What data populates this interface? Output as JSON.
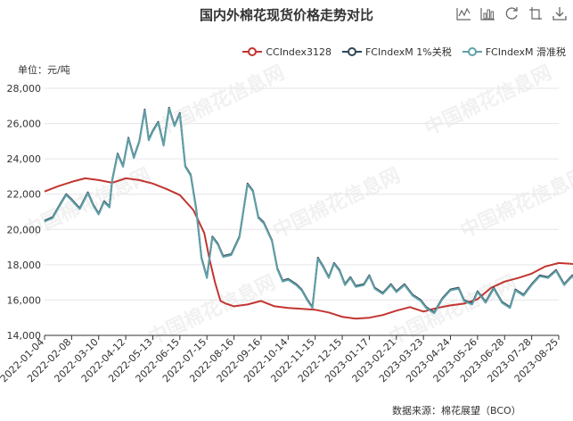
{
  "title": "国内外棉花现货价格走势对比",
  "unit_label": "单位：元/吨",
  "source_label": "数据来源：棉花展望（BCO）",
  "watermark": "中国棉花信息网",
  "toolbox": {
    "icons": [
      "line-chart-icon",
      "bar-chart-icon",
      "refresh-icon",
      "restore-icon",
      "download-icon"
    ]
  },
  "chart_data": {
    "type": "line",
    "title": "国内外棉花现货价格走势对比",
    "ylabel": "单位：元/吨",
    "ylim": [
      14000,
      28000
    ],
    "y_ticks": [
      14000,
      16000,
      18000,
      20000,
      22000,
      24000,
      26000,
      28000
    ],
    "y_tick_labels": [
      "14,000",
      "16,000",
      "18,000",
      "20,000",
      "22,000",
      "24,000",
      "26,000",
      "28,000"
    ],
    "x_tick_labels": [
      "2022-01-04",
      "2022-02-08",
      "2022-03-10",
      "2022-04-12",
      "2022-05-13",
      "2022-06-15",
      "2022-07-15",
      "2022-08-16",
      "2022-09-16",
      "2022-10-14",
      "2022-11-15",
      "2022-12-15",
      "2023-01-17",
      "2023-02-21",
      "2023-03-23",
      "2023-04-24",
      "2023-05-26",
      "2023-06-28",
      "2023-07-28",
      "2023-08-25"
    ],
    "legend_position": "top-right",
    "grid": true,
    "series": [
      {
        "name": "CCIndex3128",
        "color": "#c23531",
        "points": [
          [
            0,
            22150
          ],
          [
            0.5,
            22450
          ],
          [
            1,
            22700
          ],
          [
            1.5,
            22900
          ],
          [
            2,
            22800
          ],
          [
            2.5,
            22650
          ],
          [
            3,
            22900
          ],
          [
            3.5,
            22800
          ],
          [
            4,
            22600
          ],
          [
            4.5,
            22300
          ],
          [
            5,
            21950
          ],
          [
            5.5,
            21100
          ],
          [
            5.9,
            19800
          ],
          [
            6.1,
            18300
          ],
          [
            6.3,
            17000
          ],
          [
            6.5,
            15950
          ],
          [
            6.7,
            15800
          ],
          [
            7,
            15650
          ],
          [
            7.5,
            15750
          ],
          [
            8,
            15950
          ],
          [
            8.5,
            15650
          ],
          [
            9,
            15550
          ],
          [
            9.5,
            15500
          ],
          [
            10,
            15450
          ],
          [
            10.5,
            15300
          ],
          [
            11,
            15050
          ],
          [
            11.5,
            14950
          ],
          [
            12,
            15000
          ],
          [
            12.5,
            15150
          ],
          [
            13,
            15400
          ],
          [
            13.5,
            15600
          ],
          [
            14,
            15350
          ],
          [
            14.5,
            15550
          ],
          [
            15,
            15700
          ],
          [
            15.5,
            15800
          ],
          [
            16,
            16050
          ],
          [
            16.5,
            16700
          ],
          [
            17,
            17050
          ],
          [
            17.5,
            17250
          ],
          [
            18,
            17500
          ],
          [
            18.5,
            17900
          ],
          [
            19,
            18100
          ],
          [
            19.5,
            18050
          ],
          [
            20,
            18000
          ]
        ]
      },
      {
        "name": "FCIndexM 1%关税",
        "color": "#2f4554",
        "points": [
          [
            0,
            20500
          ],
          [
            0.3,
            20700
          ],
          [
            0.6,
            21500
          ],
          [
            0.8,
            22000
          ],
          [
            1,
            21700
          ],
          [
            1.3,
            21200
          ],
          [
            1.6,
            22100
          ],
          [
            1.8,
            21400
          ],
          [
            2,
            20900
          ],
          [
            2.2,
            21600
          ],
          [
            2.4,
            21300
          ],
          [
            2.5,
            22800
          ],
          [
            2.7,
            24300
          ],
          [
            2.9,
            23600
          ],
          [
            3.1,
            25200
          ],
          [
            3.3,
            24100
          ],
          [
            3.5,
            25000
          ],
          [
            3.7,
            26800
          ],
          [
            3.85,
            25100
          ],
          [
            4,
            25600
          ],
          [
            4.2,
            26100
          ],
          [
            4.4,
            24800
          ],
          [
            4.6,
            26900
          ],
          [
            4.8,
            25900
          ],
          [
            5,
            26600
          ],
          [
            5.2,
            23600
          ],
          [
            5.4,
            23100
          ],
          [
            5.6,
            21200
          ],
          [
            5.8,
            18400
          ],
          [
            6,
            17300
          ],
          [
            6.2,
            19600
          ],
          [
            6.4,
            19200
          ],
          [
            6.6,
            18500
          ],
          [
            6.9,
            18600
          ],
          [
            7.2,
            19600
          ],
          [
            7.5,
            22600
          ],
          [
            7.7,
            22200
          ],
          [
            7.9,
            20700
          ],
          [
            8.1,
            20400
          ],
          [
            8.4,
            19400
          ],
          [
            8.6,
            17800
          ],
          [
            8.8,
            17100
          ],
          [
            9,
            17200
          ],
          [
            9.3,
            16900
          ],
          [
            9.5,
            16600
          ],
          [
            9.7,
            16050
          ],
          [
            9.9,
            15600
          ],
          [
            10.1,
            18400
          ],
          [
            10.3,
            17900
          ],
          [
            10.5,
            17300
          ],
          [
            10.7,
            18100
          ],
          [
            10.9,
            17700
          ],
          [
            11.1,
            16900
          ],
          [
            11.3,
            17300
          ],
          [
            11.5,
            16800
          ],
          [
            11.8,
            16900
          ],
          [
            12,
            17400
          ],
          [
            12.2,
            16700
          ],
          [
            12.5,
            16400
          ],
          [
            12.8,
            16900
          ],
          [
            13,
            16500
          ],
          [
            13.3,
            16900
          ],
          [
            13.6,
            16300
          ],
          [
            13.9,
            16000
          ],
          [
            14.1,
            15600
          ],
          [
            14.4,
            15300
          ],
          [
            14.7,
            16100
          ],
          [
            15,
            16600
          ],
          [
            15.3,
            16700
          ],
          [
            15.5,
            16000
          ],
          [
            15.8,
            15800
          ],
          [
            16,
            16500
          ],
          [
            16.3,
            15900
          ],
          [
            16.6,
            16700
          ],
          [
            16.9,
            15900
          ],
          [
            17.2,
            15600
          ],
          [
            17.4,
            16600
          ],
          [
            17.7,
            16300
          ],
          [
            18,
            16900
          ],
          [
            18.3,
            17400
          ],
          [
            18.6,
            17300
          ],
          [
            18.9,
            17700
          ],
          [
            19.2,
            16900
          ],
          [
            19.5,
            17400
          ],
          [
            19.8,
            16800
          ],
          [
            20,
            17100
          ]
        ]
      },
      {
        "name": "FCIndexM 滑准税",
        "color": "#61a0a8",
        "points": [
          [
            0,
            20450
          ],
          [
            0.3,
            20650
          ],
          [
            0.6,
            21450
          ],
          [
            0.8,
            21950
          ],
          [
            1,
            21650
          ],
          [
            1.3,
            21150
          ],
          [
            1.6,
            22050
          ],
          [
            1.8,
            21350
          ],
          [
            2,
            20850
          ],
          [
            2.2,
            21550
          ],
          [
            2.4,
            21250
          ],
          [
            2.5,
            22750
          ],
          [
            2.7,
            24250
          ],
          [
            2.9,
            23550
          ],
          [
            3.1,
            25150
          ],
          [
            3.3,
            24050
          ],
          [
            3.5,
            24950
          ],
          [
            3.7,
            26750
          ],
          [
            3.85,
            25050
          ],
          [
            4,
            25550
          ],
          [
            4.2,
            26050
          ],
          [
            4.4,
            24750
          ],
          [
            4.6,
            26850
          ],
          [
            4.8,
            25850
          ],
          [
            5,
            26550
          ],
          [
            5.2,
            23550
          ],
          [
            5.4,
            23050
          ],
          [
            5.6,
            21150
          ],
          [
            5.8,
            18350
          ],
          [
            6,
            17250
          ],
          [
            6.2,
            19550
          ],
          [
            6.4,
            19150
          ],
          [
            6.6,
            18450
          ],
          [
            6.9,
            18550
          ],
          [
            7.2,
            19550
          ],
          [
            7.5,
            22550
          ],
          [
            7.7,
            22150
          ],
          [
            7.9,
            20650
          ],
          [
            8.1,
            20350
          ],
          [
            8.4,
            19350
          ],
          [
            8.6,
            17750
          ],
          [
            8.8,
            17050
          ],
          [
            9,
            17150
          ],
          [
            9.3,
            16850
          ],
          [
            9.5,
            16550
          ],
          [
            9.7,
            16000
          ],
          [
            9.9,
            15550
          ],
          [
            10.1,
            18350
          ],
          [
            10.3,
            17850
          ],
          [
            10.5,
            17250
          ],
          [
            10.7,
            18050
          ],
          [
            10.9,
            17650
          ],
          [
            11.1,
            16850
          ],
          [
            11.3,
            17250
          ],
          [
            11.5,
            16750
          ],
          [
            11.8,
            16850
          ],
          [
            12,
            17350
          ],
          [
            12.2,
            16650
          ],
          [
            12.5,
            16350
          ],
          [
            12.8,
            16850
          ],
          [
            13,
            16450
          ],
          [
            13.3,
            16850
          ],
          [
            13.6,
            16250
          ],
          [
            13.9,
            15950
          ],
          [
            14.1,
            15550
          ],
          [
            14.4,
            15250
          ],
          [
            14.7,
            16050
          ],
          [
            15,
            16550
          ],
          [
            15.3,
            16650
          ],
          [
            15.5,
            15950
          ],
          [
            15.8,
            15750
          ],
          [
            16,
            16450
          ],
          [
            16.3,
            15850
          ],
          [
            16.6,
            16650
          ],
          [
            16.9,
            15850
          ],
          [
            17.2,
            15550
          ],
          [
            17.4,
            16550
          ],
          [
            17.7,
            16250
          ],
          [
            18,
            16850
          ],
          [
            18.3,
            17350
          ],
          [
            18.6,
            17250
          ],
          [
            18.9,
            17650
          ],
          [
            19.2,
            16850
          ],
          [
            19.5,
            17350
          ],
          [
            19.8,
            16750
          ],
          [
            20,
            17050
          ]
        ]
      }
    ]
  }
}
